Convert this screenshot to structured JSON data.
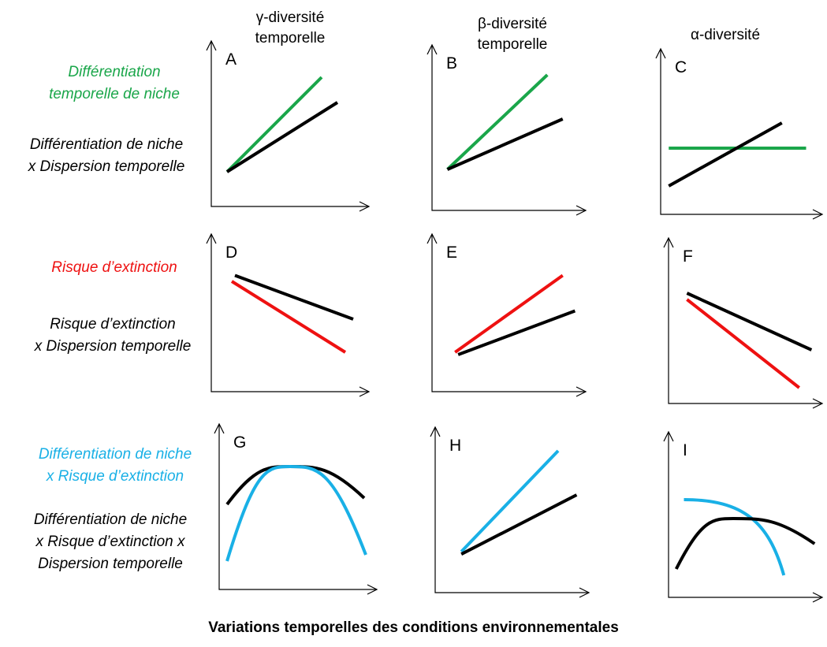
{
  "colors": {
    "green": "#1aa64a",
    "red": "#ee1111",
    "blue": "#19b0e6",
    "black": "#000000"
  },
  "columns": [
    "γ-diversité\ntemporelle",
    "β-diversité\ntemporelle",
    "α-diversité"
  ],
  "rows": [
    {
      "colored_label": "Différentiation\ntemporelle de niche",
      "colored_color": "green",
      "black_label": "Différentiation de niche\nx Dispersion temporelle"
    },
    {
      "colored_label": "Risque d’extinction",
      "colored_color": "red",
      "black_label": "Risque d’extinction\nx Dispersion temporelle"
    },
    {
      "colored_label": "Différentiation de niche\nx Risque d’extinction",
      "colored_color": "blue",
      "black_label": "Différentiation de niche\nx Risque d’extinction x\nDispersion temporelle"
    }
  ],
  "panels": [
    {
      "letter": "A",
      "curves": [
        {
          "color": "green",
          "shape": "line",
          "from": [
            0.1,
            0.15
          ],
          "to": [
            0.7,
            0.9
          ]
        },
        {
          "color": "black",
          "shape": "line",
          "from": [
            0.1,
            0.15
          ],
          "to": [
            0.8,
            0.7
          ]
        }
      ]
    },
    {
      "letter": "B",
      "curves": [
        {
          "color": "green",
          "shape": "line",
          "from": [
            0.1,
            0.2
          ],
          "to": [
            0.75,
            0.95
          ]
        },
        {
          "color": "black",
          "shape": "line",
          "from": [
            0.1,
            0.2
          ],
          "to": [
            0.85,
            0.6
          ]
        }
      ]
    },
    {
      "letter": "C",
      "curves": [
        {
          "color": "green",
          "shape": "line",
          "from": [
            0.05,
            0.4
          ],
          "to": [
            0.9,
            0.4
          ]
        },
        {
          "color": "black",
          "shape": "line",
          "from": [
            0.05,
            0.1
          ],
          "to": [
            0.75,
            0.6
          ]
        }
      ]
    },
    {
      "letter": "D",
      "curves": [
        {
          "color": "black",
          "shape": "line",
          "from": [
            0.15,
            0.85
          ],
          "to": [
            0.9,
            0.48
          ]
        },
        {
          "color": "red",
          "shape": "line",
          "from": [
            0.13,
            0.8
          ],
          "to": [
            0.85,
            0.2
          ]
        }
      ]
    },
    {
      "letter": "E",
      "curves": [
        {
          "color": "red",
          "shape": "line",
          "from": [
            0.15,
            0.2
          ],
          "to": [
            0.85,
            0.85
          ]
        },
        {
          "color": "black",
          "shape": "line",
          "from": [
            0.17,
            0.18
          ],
          "to": [
            0.93,
            0.55
          ]
        }
      ]
    },
    {
      "letter": "F",
      "curves": [
        {
          "color": "black",
          "shape": "line",
          "from": [
            0.12,
            0.75
          ],
          "to": [
            0.93,
            0.3
          ]
        },
        {
          "color": "red",
          "shape": "line",
          "from": [
            0.12,
            0.7
          ],
          "to": [
            0.85,
            0.0
          ]
        }
      ]
    },
    {
      "letter": "G",
      "curves": [
        {
          "color": "black",
          "shape": "hump",
          "from": [
            0.05,
            0.55
          ],
          "peak": [
            0.45,
            0.85
          ],
          "to": [
            0.92,
            0.6
          ]
        },
        {
          "color": "blue",
          "shape": "hump",
          "from": [
            0.05,
            0.1
          ],
          "peak": [
            0.45,
            0.85
          ],
          "to": [
            0.93,
            0.15
          ]
        }
      ]
    },
    {
      "letter": "H",
      "curves": [
        {
          "color": "blue",
          "shape": "line",
          "from": [
            0.17,
            0.2
          ],
          "to": [
            0.8,
            1.0
          ]
        },
        {
          "color": "black",
          "shape": "line",
          "from": [
            0.17,
            0.18
          ],
          "to": [
            0.92,
            0.65
          ]
        }
      ]
    },
    {
      "letter": "I",
      "curves": [
        {
          "color": "blue",
          "shape": "plateau",
          "from": [
            0.1,
            0.65
          ],
          "to": [
            0.75,
            0.05
          ]
        },
        {
          "color": "black",
          "shape": "hump",
          "from": [
            0.05,
            0.1
          ],
          "peak": [
            0.42,
            0.5
          ],
          "to": [
            0.95,
            0.3
          ]
        }
      ]
    }
  ],
  "footer": "Variations temporelles des conditions environnementales"
}
